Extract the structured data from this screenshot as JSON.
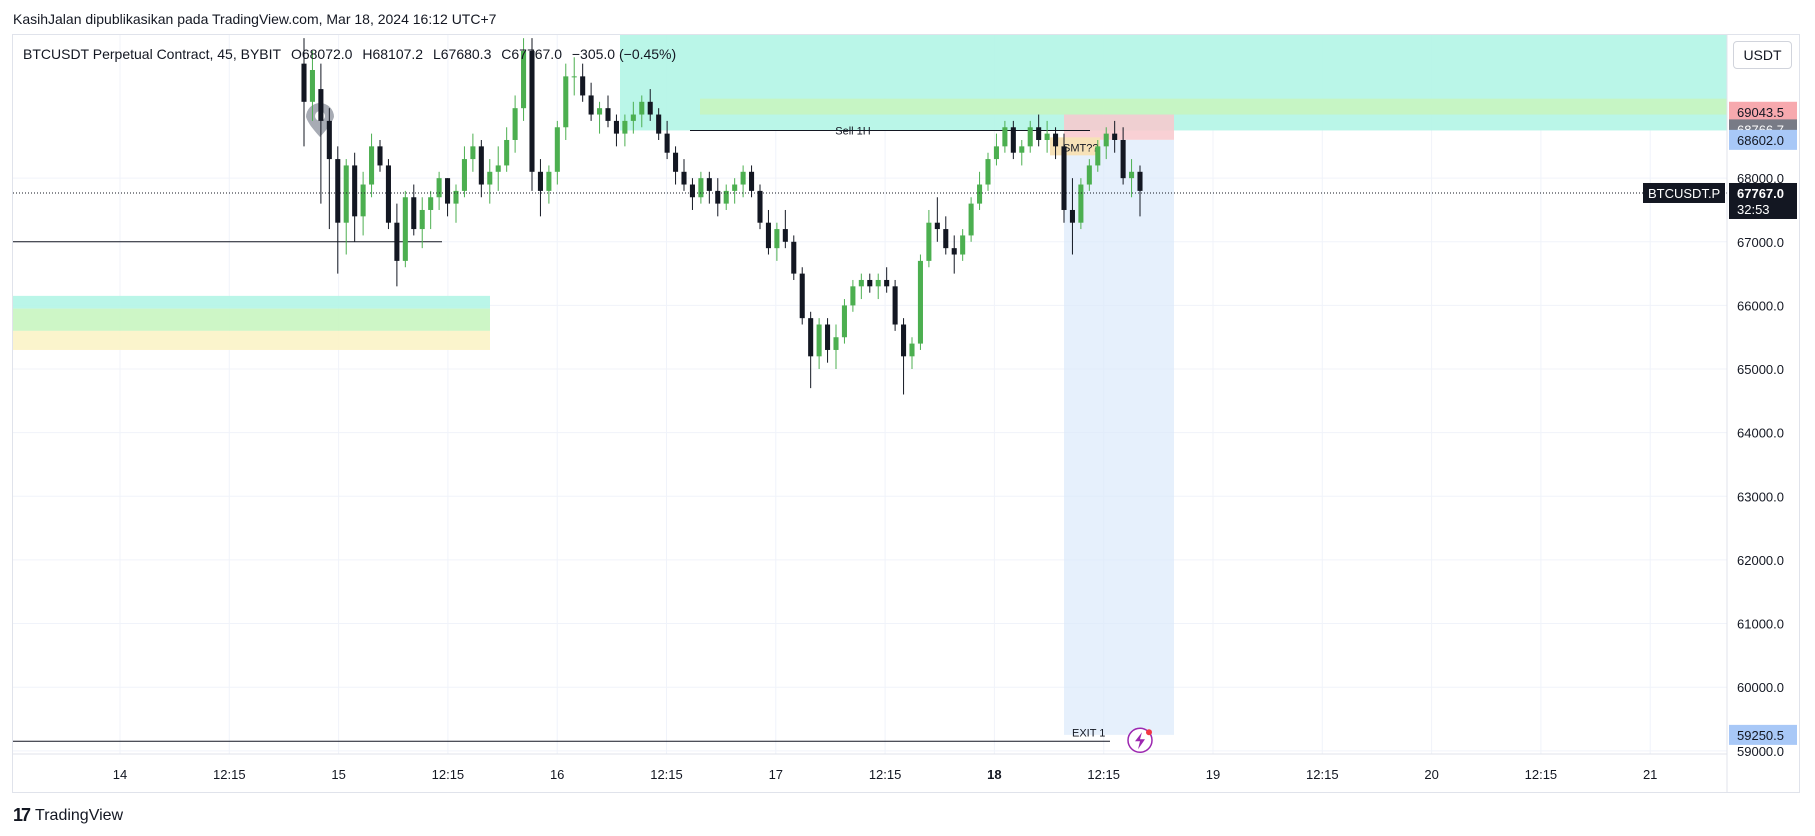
{
  "header": {
    "published": "KasihJalan dipublikasikan pada TradingView.com, Mar 18, 2024 16:12 UTC+7"
  },
  "legend": {
    "symbol": "BTCUSDT Perpetual Contract, 45, BYBIT",
    "open": "O68072.0",
    "high": "H68107.2",
    "low": "L67680.3",
    "close": "C67767.0",
    "change": "−305.0 (−0.45%)"
  },
  "currency_button": "USDT",
  "brand": {
    "logo_text": "17",
    "name": "TradingView"
  },
  "colors": {
    "up": "#4caf50",
    "down": "#131722",
    "cyan_zone": "#b2f5e6",
    "green_zone": "#c8f5c0",
    "yellow_zone": "#fbf3c6",
    "short_stop": "#f8c8cc",
    "short_target": "#d9e8fb"
  },
  "chart_data": {
    "type": "candlestick",
    "symbol": "BTCUSDT.P",
    "interval": "45",
    "ylim": [
      58950,
      70250
    ],
    "y_ticks": [
      59000,
      60000,
      61000,
      62000,
      63000,
      64000,
      65000,
      66000,
      67000,
      68000
    ],
    "y_tick_labels": [
      "59000.0",
      "60000.0",
      "61000.0",
      "62000.0",
      "63000.0",
      "64000.0",
      "65000.0",
      "66000.0",
      "67000.0",
      "68000.0"
    ],
    "x_ticks": [
      "14",
      "12:15",
      "15",
      "12:15",
      "16",
      "12:15",
      "17",
      "12:15",
      "18",
      "12:15",
      "19",
      "12:15",
      "20",
      "12:15",
      "21"
    ],
    "x_tick_bold_index": 8,
    "grid": true,
    "last_price": 67767.0,
    "last_price_label": "67767.0",
    "countdown": "32:53",
    "symbol_tag": "BTCUSDT.P",
    "price_labels": [
      {
        "value": 69043.5,
        "label": "69043.5",
        "color": "#f7a9ae"
      },
      {
        "value": 68766.7,
        "label": "68766.7",
        "color": "#787b86"
      },
      {
        "value": 68602.0,
        "label": "68602.0",
        "color": "#a8c8f7"
      },
      {
        "value": 59250.5,
        "label": "59250.5",
        "color": "#a8c8f7"
      }
    ],
    "annotations": {
      "sell_label": "Sell 1H",
      "sell_level": 68750,
      "smt_label": "SMT??",
      "exit_label": "EXIT 1",
      "exit_level": 59150,
      "hline_level": 67000
    },
    "zones": [
      {
        "name": "cyan-zone-top",
        "y_from": 68750,
        "y_to": 70250
      },
      {
        "name": "green-zone-top",
        "y_from": 69000,
        "y_to": 69250
      },
      {
        "name": "cyan-zone-left",
        "y_from": 65950,
        "y_to": 66150
      },
      {
        "name": "green-zone-left",
        "y_from": 65600,
        "y_to": 65950
      },
      {
        "name": "yellow-zone-left",
        "y_from": 65300,
        "y_to": 65600
      }
    ],
    "short_position": {
      "entry": 68602.0,
      "stop": 68766.7,
      "stop_top": 69000,
      "target": 59250.5
    },
    "candles": [
      [
        69800,
        70200,
        68500,
        69200
      ],
      [
        69200,
        70000,
        68900,
        69700
      ],
      [
        69400,
        69800,
        67600,
        68900
      ],
      [
        68900,
        69100,
        67200,
        68300
      ],
      [
        68300,
        68500,
        66500,
        67300
      ],
      [
        67300,
        68300,
        66800,
        68200
      ],
      [
        68200,
        68400,
        67000,
        67400
      ],
      [
        67400,
        68100,
        67100,
        67900
      ],
      [
        67900,
        68700,
        67700,
        68500
      ],
      [
        68500,
        68600,
        68100,
        68200
      ],
      [
        68200,
        68300,
        67200,
        67300
      ],
      [
        67300,
        67600,
        66300,
        66700
      ],
      [
        66700,
        67800,
        66600,
        67700
      ],
      [
        67700,
        67900,
        67100,
        67200
      ],
      [
        67200,
        67700,
        66900,
        67500
      ],
      [
        67500,
        67800,
        67200,
        67700
      ],
      [
        67700,
        68100,
        67500,
        68000
      ],
      [
        68000,
        68000,
        67400,
        67600
      ],
      [
        67600,
        67900,
        67300,
        67800
      ],
      [
        67800,
        68500,
        67700,
        68300
      ],
      [
        68300,
        68700,
        68100,
        68500
      ],
      [
        68500,
        68600,
        67700,
        67900
      ],
      [
        67900,
        68300,
        67600,
        68100
      ],
      [
        68100,
        68500,
        67800,
        68200
      ],
      [
        68200,
        68800,
        68100,
        68600
      ],
      [
        68600,
        69300,
        68400,
        69100
      ],
      [
        69100,
        70200,
        68900,
        70000
      ],
      [
        70000,
        70200,
        67800,
        68100
      ],
      [
        68100,
        68300,
        67400,
        67800
      ],
      [
        67800,
        68200,
        67600,
        68100
      ],
      [
        68100,
        68900,
        67900,
        68800
      ],
      [
        68800,
        69800,
        68600,
        69600
      ],
      [
        69600,
        69900,
        69300,
        69600
      ],
      [
        69600,
        69800,
        69200,
        69300
      ],
      [
        69300,
        69500,
        68900,
        69000
      ],
      [
        69000,
        69200,
        68700,
        69100
      ],
      [
        69100,
        69300,
        68800,
        68900
      ],
      [
        68900,
        69000,
        68500,
        68700
      ],
      [
        68700,
        69000,
        68500,
        68900
      ],
      [
        68900,
        69200,
        68700,
        69000
      ],
      [
        69000,
        69300,
        68800,
        69200
      ],
      [
        69200,
        69400,
        68900,
        69000
      ],
      [
        69000,
        69100,
        68600,
        68700
      ],
      [
        68700,
        68900,
        68300,
        68400
      ],
      [
        68400,
        68500,
        67900,
        68100
      ],
      [
        68100,
        68300,
        67800,
        67900
      ],
      [
        67900,
        68000,
        67500,
        67700
      ],
      [
        67700,
        68100,
        67600,
        68000
      ],
      [
        68000,
        68100,
        67600,
        67800
      ],
      [
        67800,
        68000,
        67400,
        67600
      ],
      [
        67600,
        67900,
        67500,
        67800
      ],
      [
        67800,
        68000,
        67600,
        67900
      ],
      [
        67900,
        68200,
        67700,
        68100
      ],
      [
        68100,
        68200,
        67700,
        67800
      ],
      [
        67800,
        67900,
        67200,
        67300
      ],
      [
        67300,
        67500,
        66800,
        66900
      ],
      [
        66900,
        67300,
        66700,
        67200
      ],
      [
        67200,
        67500,
        66900,
        67000
      ],
      [
        67000,
        67100,
        66400,
        66500
      ],
      [
        66500,
        66600,
        65700,
        65800
      ],
      [
        65800,
        65900,
        64700,
        65200
      ],
      [
        65200,
        65800,
        65000,
        65700
      ],
      [
        65700,
        65800,
        65100,
        65300
      ],
      [
        65300,
        65700,
        65000,
        65500
      ],
      [
        65500,
        66100,
        65400,
        66000
      ],
      [
        66000,
        66400,
        65900,
        66300
      ],
      [
        66300,
        66500,
        66100,
        66400
      ],
      [
        66400,
        66500,
        66200,
        66300
      ],
      [
        66300,
        66500,
        66100,
        66400
      ],
      [
        66400,
        66600,
        66200,
        66300
      ],
      [
        66300,
        66400,
        65600,
        65700
      ],
      [
        65700,
        65800,
        64600,
        65200
      ],
      [
        65200,
        65500,
        65000,
        65400
      ],
      [
        65400,
        66800,
        65300,
        66700
      ],
      [
        66700,
        67500,
        66600,
        67300
      ],
      [
        67300,
        67700,
        67000,
        67200
      ],
      [
        67200,
        67400,
        66800,
        66900
      ],
      [
        66900,
        67100,
        66500,
        66800
      ],
      [
        66800,
        67200,
        66700,
        67100
      ],
      [
        67100,
        67700,
        67000,
        67600
      ],
      [
        67600,
        68100,
        67500,
        67900
      ],
      [
        67900,
        68400,
        67800,
        68300
      ],
      [
        68300,
        68700,
        68200,
        68500
      ],
      [
        68500,
        68900,
        68400,
        68800
      ],
      [
        68800,
        68900,
        68300,
        68400
      ],
      [
        68400,
        68600,
        68200,
        68500
      ],
      [
        68500,
        68900,
        68400,
        68800
      ],
      [
        68800,
        69000,
        68500,
        68600
      ],
      [
        68600,
        68900,
        68400,
        68700
      ],
      [
        68700,
        68800,
        68300,
        68500
      ],
      [
        68500,
        68700,
        67300,
        67500
      ],
      [
        67500,
        68000,
        66800,
        67300
      ],
      [
        67300,
        68000,
        67200,
        67900
      ],
      [
        67900,
        68300,
        67800,
        68200
      ],
      [
        68200,
        68600,
        68100,
        68500
      ],
      [
        68500,
        68800,
        68300,
        68700
      ],
      [
        68700,
        68900,
        68400,
        68600
      ],
      [
        68600,
        68800,
        67900,
        68000
      ],
      [
        68000,
        68300,
        67700,
        68100
      ],
      [
        68100,
        68200,
        67400,
        67800
      ]
    ],
    "candle_x_start": 304,
    "candle_x_end": 1140
  }
}
